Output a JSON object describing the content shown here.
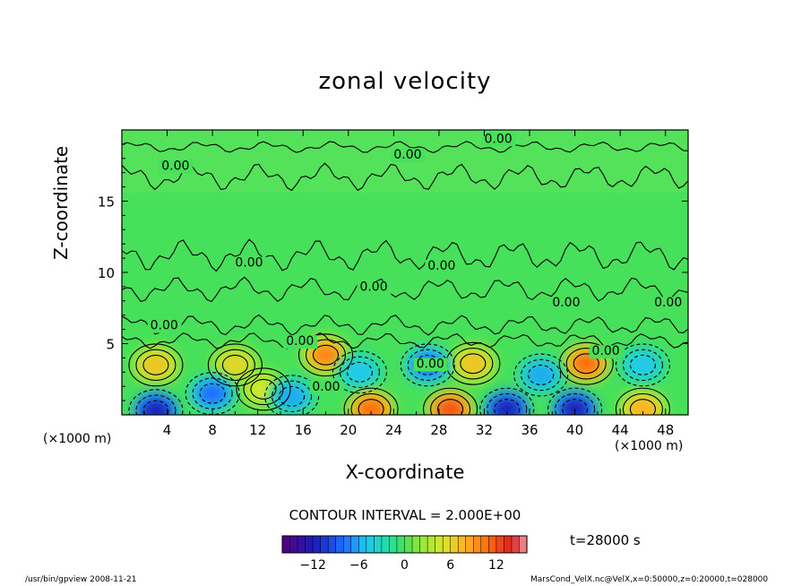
{
  "chart_data": {
    "type": "heatmap",
    "title": "zonal velocity",
    "xlabel": "X-coordinate",
    "ylabel": "Z-coordinate",
    "x_unit": "(×1000 m)",
    "x_ticks": [
      4,
      8,
      12,
      16,
      20,
      24,
      28,
      32,
      36,
      40,
      44,
      48
    ],
    "y_ticks": [
      5,
      10,
      15
    ],
    "xlim": [
      0,
      50
    ],
    "ylim": [
      0,
      20
    ],
    "contour_label": "0.00",
    "contour_interval": "CONTOUR INTERVAL = 2.000E+00",
    "colorbar": {
      "ticks": [
        -12,
        -6,
        0,
        6,
        12
      ],
      "range": [
        -16,
        16
      ]
    },
    "time": "t=28000 s",
    "cells": [
      {
        "x": 3,
        "z": 3.5,
        "v": 7
      },
      {
        "x": 10,
        "z": 3.5,
        "v": 6
      },
      {
        "x": 18,
        "z": 4.2,
        "v": 10
      },
      {
        "x": 31,
        "z": 3.6,
        "v": 7
      },
      {
        "x": 41,
        "z": 3.6,
        "v": 11
      },
      {
        "x": 12.5,
        "z": 1.8,
        "v": 5
      },
      {
        "x": 8,
        "z": 1.5,
        "v": -8
      },
      {
        "x": 15,
        "z": 1.3,
        "v": -6
      },
      {
        "x": 21,
        "z": 3.0,
        "v": -5
      },
      {
        "x": 27,
        "z": 3.5,
        "v": -8
      },
      {
        "x": 37,
        "z": 2.8,
        "v": -6
      },
      {
        "x": 46,
        "z": 3.5,
        "v": -5
      },
      {
        "x": 3,
        "z": 0.3,
        "v": -12
      },
      {
        "x": 22,
        "z": 0.4,
        "v": 11
      },
      {
        "x": 29,
        "z": 0.4,
        "v": 12
      },
      {
        "x": 34,
        "z": 0.4,
        "v": -12
      },
      {
        "x": 40,
        "z": 0.4,
        "v": -12
      },
      {
        "x": 46,
        "z": 0.4,
        "v": 8
      }
    ]
  },
  "footer": {
    "left": "/usr/bin/gpview  2008-11-21",
    "right": "MarsCond_VelX.nc@VelX,x=0:50000,z=0:20000,t=028000"
  },
  "colors": {
    "background_field": "#47e05a",
    "positive": "#ff9a1a",
    "negative": "#1e6cff"
  }
}
